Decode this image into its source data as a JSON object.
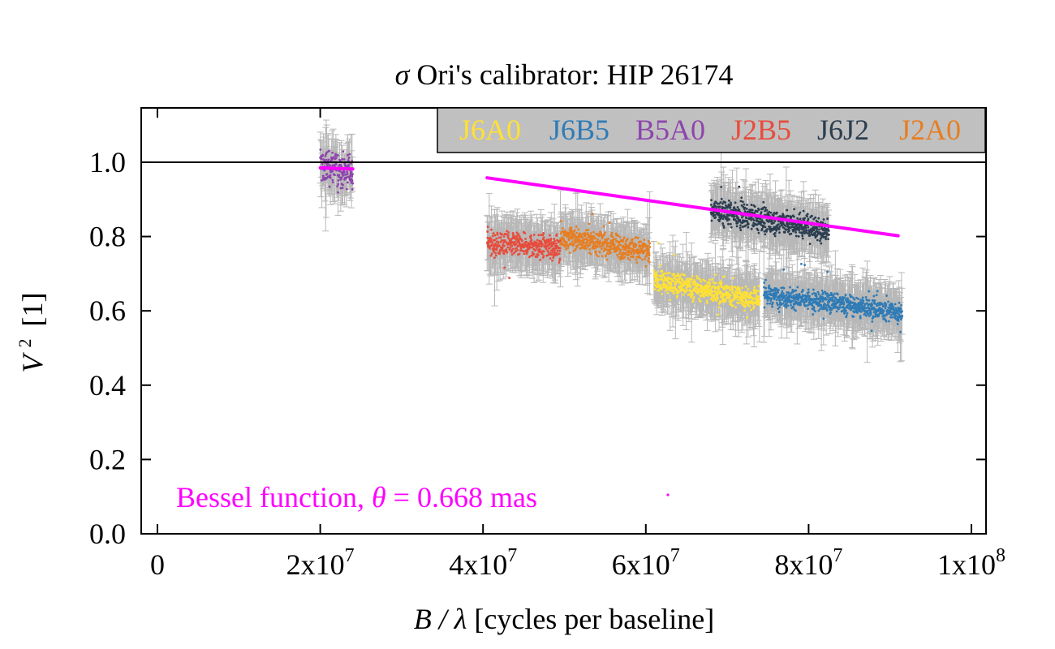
{
  "chart_data": {
    "type": "scatter",
    "title": {
      "symbol": "σ",
      "text": "Ori's calibrator: HIP 26174"
    },
    "xlabel": {
      "symbol": "B / λ",
      "text": "[cycles per baseline]"
    },
    "ylabel": {
      "base": "V",
      "sup": "2",
      "unit": "[1]"
    },
    "xlim": [
      0,
      100000000
    ],
    "ylim": [
      0,
      1.12
    ],
    "x_ticks": [
      {
        "value": 0,
        "base": "0",
        "exp": ""
      },
      {
        "value": 20000000,
        "base": "2x10",
        "exp": "7"
      },
      {
        "value": 40000000,
        "base": "4x10",
        "exp": "7"
      },
      {
        "value": 60000000,
        "base": "6x10",
        "exp": "7"
      },
      {
        "value": 80000000,
        "base": "8x10",
        "exp": "7"
      },
      {
        "value": 100000000,
        "base": "1x10",
        "exp": "8"
      }
    ],
    "y_ticks": [
      {
        "value": 0.0,
        "label": "0.0"
      },
      {
        "value": 0.2,
        "label": "0.2"
      },
      {
        "value": 0.4,
        "label": "0.4"
      },
      {
        "value": 0.6,
        "label": "0.6"
      },
      {
        "value": 0.8,
        "label": "0.8"
      },
      {
        "value": 1.0,
        "label": "1.0"
      }
    ],
    "reference_line": {
      "y": 1.0,
      "color": "#000000"
    },
    "legend": {
      "placement": "top-right",
      "background": "#c0c0c0",
      "entries": [
        {
          "label": "J6A0",
          "color": "#ffe135"
        },
        {
          "label": "J6B5",
          "color": "#2e7bb6"
        },
        {
          "label": "B5A0",
          "color": "#8e44ad"
        },
        {
          "label": "J2B5",
          "color": "#e74c3c"
        },
        {
          "label": "J6J2",
          "color": "#2c3e50"
        },
        {
          "label": "J2A0",
          "color": "#e67e22"
        }
      ]
    },
    "error_bar_color": "#b8b8b8",
    "series": [
      {
        "name": "B5A0",
        "color": "#8e44ad",
        "x_range": [
          20000000,
          24000000
        ],
        "y_start": 0.99,
        "y_end": 0.975,
        "spread": 0.022
      },
      {
        "name": "J2B5",
        "color": "#e74c3c",
        "x_range": [
          40500000,
          49500000
        ],
        "y_start": 0.78,
        "y_end": 0.77,
        "spread": 0.016
      },
      {
        "name": "J2A0",
        "color": "#e67e22",
        "x_range": [
          49500000,
          60500000
        ],
        "y_start": 0.8,
        "y_end": 0.76,
        "spread": 0.016
      },
      {
        "name": "J6A0",
        "color": "#ffe135",
        "x_range": [
          61000000,
          74000000
        ],
        "y_start": 0.68,
        "y_end": 0.63,
        "spread": 0.016
      },
      {
        "name": "J6J2",
        "color": "#2c3e50",
        "x_range": [
          68000000,
          82500000
        ],
        "y_start": 0.87,
        "y_end": 0.815,
        "spread": 0.017
      },
      {
        "name": "J6B5",
        "color": "#2e7bb6",
        "x_range": [
          74500000,
          91500000
        ],
        "y_start": 0.645,
        "y_end": 0.595,
        "spread": 0.014
      }
    ],
    "model": {
      "color": "#ff00ff",
      "label": {
        "prefix": "Bessel function,",
        "symbol": "θ",
        "suffix": "= 0.668 mas"
      },
      "segments": [
        {
          "x": [
            20000000,
            24000000
          ],
          "y": [
            0.985,
            0.982
          ]
        },
        {
          "x": [
            40500000,
            91000000
          ],
          "y": [
            0.958,
            0.802
          ]
        }
      ]
    }
  }
}
